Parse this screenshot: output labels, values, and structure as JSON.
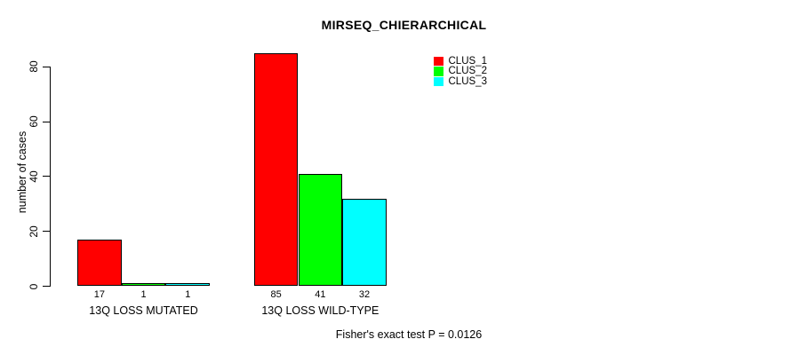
{
  "chart_data": {
    "type": "bar",
    "title": "MIRSEQ_CHIERARCHICAL",
    "ylabel": "number of cases",
    "xlabel": "",
    "yticks": [
      0,
      20,
      40,
      60,
      80
    ],
    "ylim": [
      0,
      85
    ],
    "grid": false,
    "legend_position": "top-right",
    "categories": [
      "13Q LOSS MUTATED",
      "13Q LOSS WILD-TYPE"
    ],
    "series": [
      {
        "name": "CLUS_1",
        "color": "#ff0000",
        "values": [
          17,
          85
        ]
      },
      {
        "name": "CLUS_2",
        "color": "#00ff00",
        "values": [
          1,
          41
        ]
      },
      {
        "name": "CLUS_3",
        "color": "#00ffff",
        "values": [
          1,
          32
        ]
      }
    ],
    "bar_value_labels": [
      [
        "17",
        "1",
        "1"
      ],
      [
        "85",
        "41",
        "32"
      ]
    ],
    "annotation": "Fisher's exact test P = 0.0126"
  }
}
